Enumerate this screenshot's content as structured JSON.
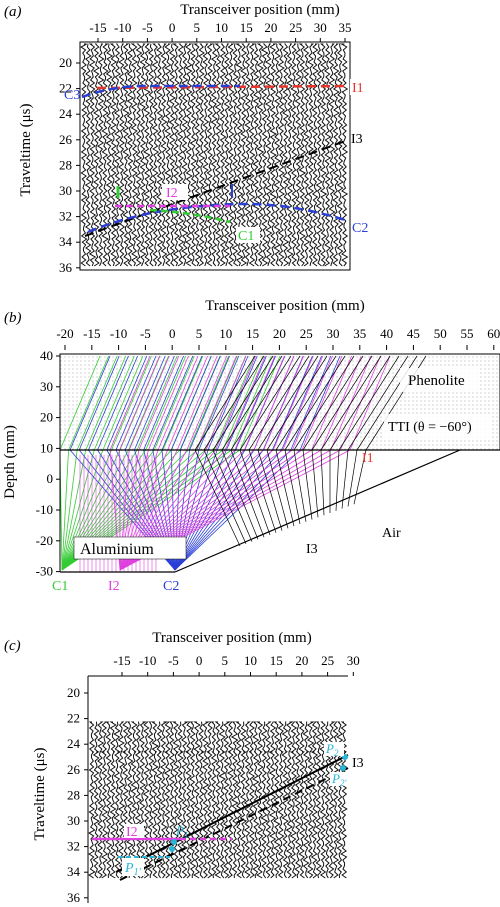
{
  "panel_a": {
    "label": "(a)",
    "x_axis_title": "Transceiver position (mm)",
    "x_ticks": [
      "-15",
      "-10",
      "-5",
      "0",
      "5",
      "10",
      "15",
      "20",
      "25",
      "30",
      "35"
    ],
    "y_axis_title": "Traveltime (μs)",
    "y_ticks": [
      "20",
      "22",
      "24",
      "26",
      "28",
      "30",
      "32",
      "34",
      "36"
    ],
    "annotations": [
      "I1",
      "I3",
      "I2",
      "C1",
      "C2",
      "C3"
    ],
    "colors": {
      "I1": "#e8352c",
      "I2": "#e040e0",
      "I3": "#000000",
      "C1": "#33cc33",
      "C2": "#2a3fd6",
      "C3": "#2a3fd6"
    }
  },
  "panel_b": {
    "label": "(b)",
    "x_axis_title": "Transceiver position (mm)",
    "x_ticks": [
      "-20",
      "-15",
      "-10",
      "-5",
      "0",
      "5",
      "10",
      "15",
      "20",
      "25",
      "30",
      "35",
      "40",
      "45",
      "50",
      "55",
      "60"
    ],
    "y_axis_title": "Depth (mm)",
    "y_ticks": [
      "40",
      "30",
      "20",
      "10",
      "0",
      "-10",
      "-20",
      "-30"
    ],
    "medium_top": "Phenolite",
    "medium_top_property": "TTI (θ = −60°)",
    "interface_label": "I1",
    "medium_bottom": "Aluminium",
    "air_label": "Air",
    "interface3_label": "I3",
    "bottom_labels": [
      "C1",
      "I2",
      "C2"
    ],
    "colors": {
      "C1": "#33cc33",
      "I2": "#e040e0",
      "C2": "#2a3fd6",
      "I1": "#e8352c",
      "I3": "#000000"
    }
  },
  "panel_c": {
    "label": "(c)",
    "x_axis_title": "Transceiver position (mm)",
    "x_ticks": [
      "-15",
      "-10",
      "-5",
      "0",
      "5",
      "10",
      "15",
      "20",
      "25",
      "30"
    ],
    "y_axis_title": "Traveltime (μs)",
    "y_ticks": [
      "20",
      "22",
      "24",
      "26",
      "28",
      "30",
      "32",
      "34",
      "36"
    ],
    "annotations": [
      "I3",
      "I2",
      "P",
      "P",
      "P",
      "P"
    ],
    "subscripts": [
      "2",
      "2'",
      "1",
      "1'"
    ],
    "colors": {
      "P": "#29b6d6",
      "I2": "#e040e0",
      "I3": "#000000"
    }
  }
}
